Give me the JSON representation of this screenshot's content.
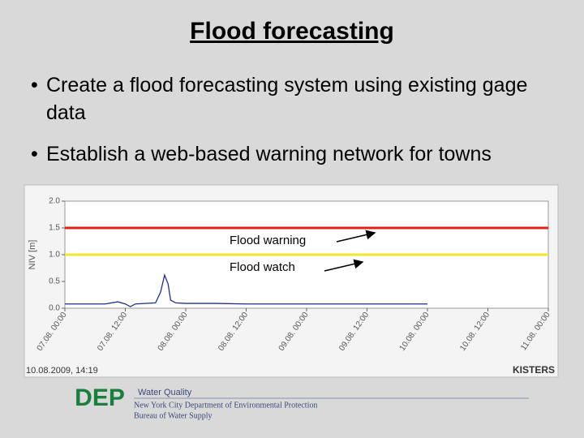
{
  "title": "Flood forecasting",
  "bullets": [
    "Create a flood forecasting system using existing gage data",
    "Establish a web-based warning network for towns"
  ],
  "chart_data": {
    "type": "line",
    "y_label": "NIV [m]",
    "x": [
      0,
      8,
      10.5,
      12,
      13,
      14,
      18,
      19,
      19.8,
      20.5,
      21,
      22,
      24,
      30,
      36,
      48,
      60,
      72
    ],
    "series": [
      {
        "color": "#1f2f8f",
        "values": [
          0.08,
          0.08,
          0.12,
          0.08,
          0.03,
          0.08,
          0.1,
          0.3,
          0.62,
          0.45,
          0.15,
          0.1,
          0.09,
          0.09,
          0.08,
          0.08,
          0.08,
          0.08
        ]
      }
    ],
    "thresholds": [
      {
        "name": "Flood warning",
        "value": 1.5,
        "color": "#e0201b"
      },
      {
        "name": "Flood watch",
        "value": 1.0,
        "color": "#f2e829"
      }
    ],
    "xlim": [
      0,
      96
    ],
    "xticks": [
      {
        "value": 0,
        "label": "07.08. 00:00"
      },
      {
        "value": 12,
        "label": "07.08. 12:00"
      },
      {
        "value": 24,
        "label": "08.08. 00:00"
      },
      {
        "value": 36,
        "label": "08.08. 12:00"
      },
      {
        "value": 48,
        "label": "09.08. 00:00"
      },
      {
        "value": 60,
        "label": "09.08. 12:00"
      },
      {
        "value": 72,
        "label": "10.08. 00:00"
      },
      {
        "value": 84,
        "label": "10.08. 12:00"
      },
      {
        "value": 96,
        "label": "11.08. 00:00"
      }
    ],
    "ylim": [
      0,
      2.0
    ],
    "yticks": [
      {
        "value": 0,
        "label": "0.0"
      },
      0.5,
      {
        "value": 1.0,
        "label": "1.0"
      },
      1.5,
      {
        "value": 2.0,
        "label": "2.0"
      }
    ],
    "timestamp": "10.08.2009, 14:19",
    "brand": "KISTERS"
  },
  "footer": {
    "logo": "DEP",
    "section": "Water Quality",
    "org": "New York City Department of Environmental Protection",
    "bureau": "Bureau of Water Supply"
  }
}
